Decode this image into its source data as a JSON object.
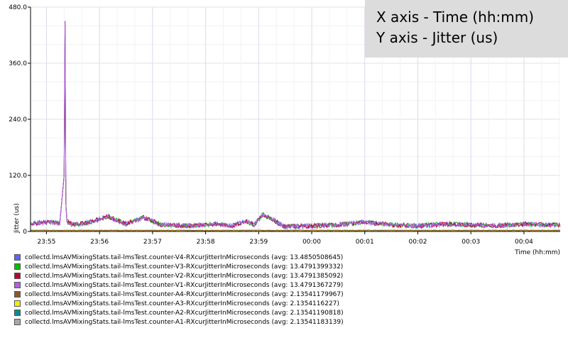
{
  "overlay": {
    "line1": "X axis - Time (hh:mm)",
    "line2": "Y axis - Jitter (us)"
  },
  "chart_data": {
    "type": "line",
    "xlabel": "Time (hh:mm)",
    "ylabel": "Jitter (us)",
    "x_ticks": [
      "23:55",
      "23:56",
      "23:57",
      "23:58",
      "23:59",
      "00:00",
      "00:01",
      "00:02",
      "00:03",
      "00:04"
    ],
    "y_ticks": [
      0,
      120.0,
      240.0,
      360.0,
      480.0
    ],
    "y_tick_labels": [
      "0",
      "120.0",
      "240.0",
      "360.0",
      "480.0"
    ],
    "xlim": [
      "23:54:42",
      "00:04:41"
    ],
    "ylim": [
      0,
      480
    ],
    "grid": true,
    "legend_position": "bottom",
    "series": [
      {
        "name": "collectd.lmsAVMixingStats.tail-lmsTest.counter-V4-RXcurJitterInMicroseconds (avg: 13.4850508645)",
        "color": "#6262ff",
        "avg": 13.4850508645
      },
      {
        "name": "collectd.lmsAVMixingStats.tail-lmsTest.counter-V3-RXcurJitterInMicroseconds (avg: 13.4791399332)",
        "color": "#00c000",
        "avg": 13.4791399332
      },
      {
        "name": "collectd.lmsAVMixingStats.tail-lmsTest.counter-V2-RXcurJitterInMicroseconds (avg: 13.4791385092)",
        "color": "#c00030",
        "avg": 13.4791385092
      },
      {
        "name": "collectd.lmsAVMixingStats.tail-lmsTest.counter-V1-RXcurJitterInMicroseconds (avg: 13.4791367279)",
        "color": "#b060e0",
        "avg": 13.4791367279
      },
      {
        "name": "collectd.lmsAVMixingStats.tail-lmsTest.counter-A4-RXcurJitterInMicroseconds (avg: 2.13541179967)",
        "color": "#8b5a2b",
        "avg": 2.13541179967
      },
      {
        "name": "collectd.lmsAVMixingStats.tail-lmsTest.counter-A3-RXcurJitterInMicroseconds (avg: 2.1354116227)",
        "color": "#f0f000",
        "avg": 2.1354116227
      },
      {
        "name": "collectd.lmsAVMixingStats.tail-lmsTest.counter-A2-RXcurJitterInMicroseconds (avg: 2.13541190818)",
        "color": "#009090",
        "avg": 2.13541190818
      },
      {
        "name": "collectd.lmsAVMixingStats.tail-lmsTest.counter-A1-RXcurJitterInMicroseconds (avg: 2.13541183139)",
        "color": "#a8a8a8",
        "avg": 2.13541183139
      }
    ],
    "video_jitter_profile": {
      "x": [
        "23:54:42",
        "23:55:00",
        "23:55:15",
        "23:55:20",
        "23:55:21",
        "23:55:22",
        "23:55:23",
        "23:55:30",
        "23:55:45",
        "23:56:10",
        "23:56:30",
        "23:56:50",
        "23:57:10",
        "23:57:40",
        "23:58:10",
        "23:58:30",
        "23:58:45",
        "23:58:55",
        "23:59:05",
        "23:59:30",
        "00:00:00",
        "00:00:30",
        "00:01:00",
        "00:01:30",
        "00:02:00",
        "00:02:30",
        "00:03:00",
        "00:03:30",
        "00:04:00",
        "00:04:20",
        "00:04:41"
      ],
      "y": [
        14,
        18,
        16,
        120,
        450,
        60,
        20,
        12,
        16,
        30,
        14,
        28,
        12,
        10,
        14,
        10,
        20,
        12,
        35,
        8,
        10,
        12,
        18,
        12,
        10,
        14,
        12,
        10,
        14,
        12,
        12
      ]
    },
    "audio_jitter_profile": {
      "x": [
        "23:54:42",
        "23:56:00",
        "23:58:00",
        "00:00:00",
        "00:02:00",
        "00:04:41"
      ],
      "y": [
        2,
        2,
        2,
        2,
        2,
        2
      ]
    }
  }
}
